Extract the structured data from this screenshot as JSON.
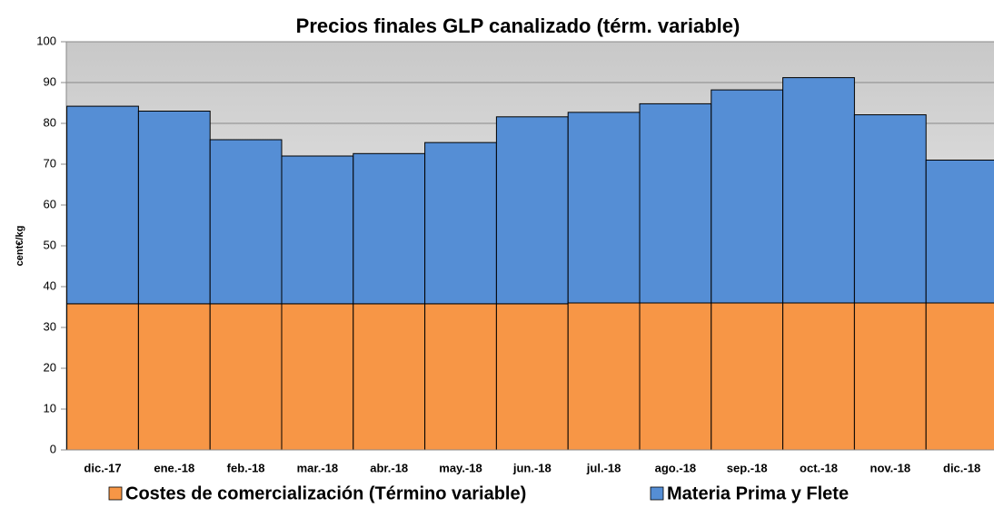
{
  "chart_data": {
    "type": "stacked_bar",
    "title": "Precios finales GLP canalizado (térm. variable)",
    "y_label": "cent€/kg",
    "categories": [
      "dic.-17",
      "ene.-18",
      "feb.-18",
      "mar.-18",
      "abr.-18",
      "may.-18",
      "jun.-18",
      "jul.-18",
      "ago.-18",
      "sep.-18",
      "oct.-18",
      "nov.-18",
      "dic.-18"
    ],
    "series": [
      {
        "name": "Costes de comercialización (Término variable)",
        "color": "#f79646",
        "values": [
          35.8,
          35.8,
          35.8,
          35.8,
          35.8,
          35.8,
          35.8,
          36,
          36,
          36,
          36,
          36,
          36
        ]
      },
      {
        "name": "Materia Prima y Flete",
        "color": "#558ed5",
        "values": [
          48.4,
          47.2,
          40.2,
          36.2,
          36.8,
          39.5,
          45.8,
          46.7,
          48.8,
          52.2,
          55.2,
          46.1,
          35
        ]
      }
    ],
    "ylim": [
      0,
      100
    ],
    "yticks": [
      0,
      10,
      20,
      30,
      40,
      50,
      60,
      70,
      80,
      90,
      100
    ],
    "grid": true,
    "legend": "bottom"
  }
}
